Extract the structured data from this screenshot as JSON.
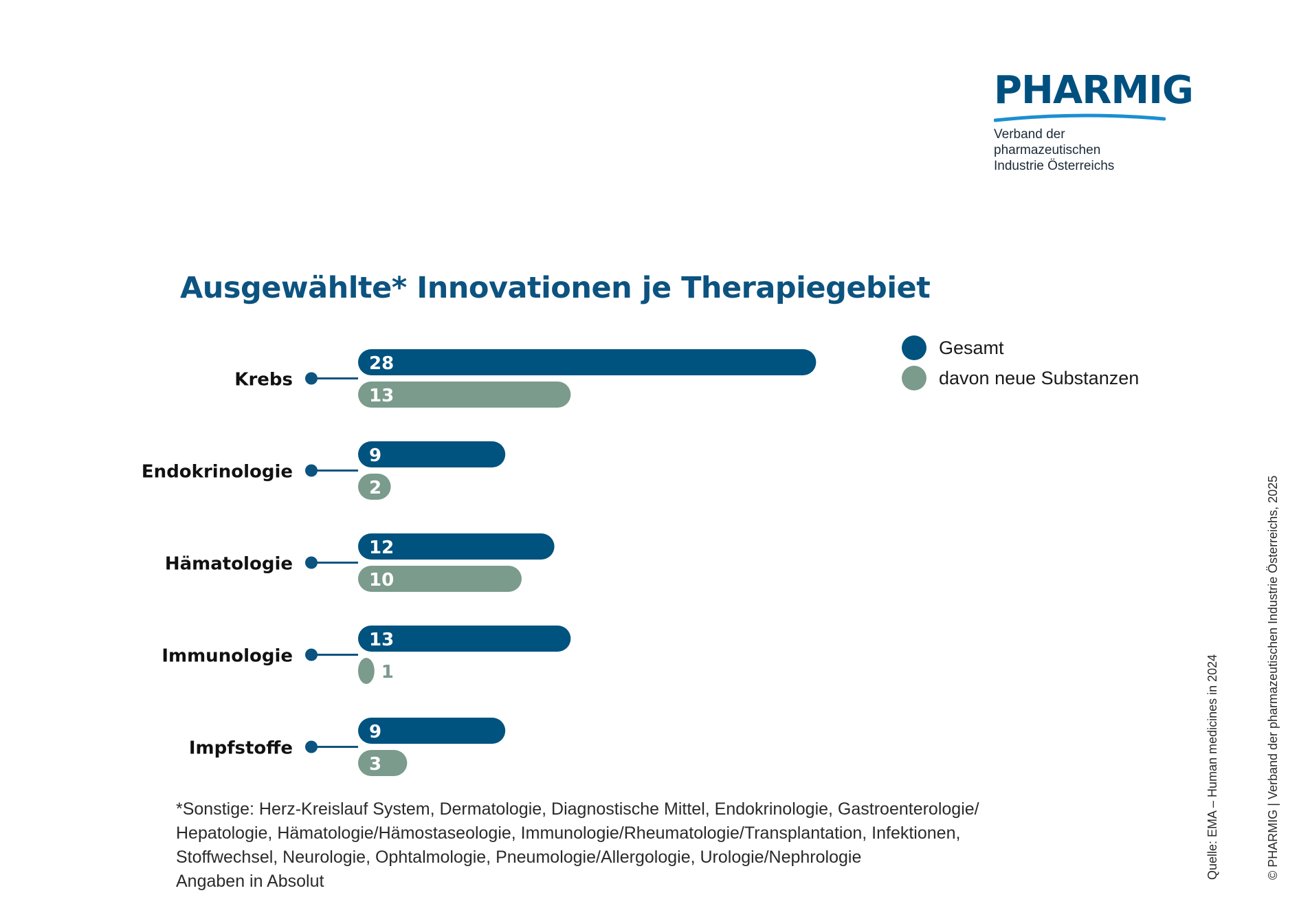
{
  "logo": {
    "wordmark": "PHARMIG",
    "subtitle_line1": "Verband der pharmazeutischen",
    "subtitle_line2": "Industrie Österreichs",
    "color": "#00507f",
    "swoosh_color": "#1a8fd1"
  },
  "chart_data": {
    "type": "bar",
    "orientation": "horizontal",
    "title": "Ausgewählte* Innovationen je Therapiegebiet",
    "categories": [
      "Krebs",
      "Endokrinologie",
      "Hämatologie",
      "Immunologie",
      "Impfstoffe"
    ],
    "series": [
      {
        "name": "Gesamt",
        "color": "#00527f",
        "values": [
          28,
          9,
          12,
          13,
          9
        ]
      },
      {
        "name": "davon neue Substanzen",
        "color": "#7b9b8c",
        "values": [
          13,
          2,
          10,
          1,
          3
        ]
      }
    ],
    "legend_position": "top-right",
    "grid": false
  },
  "colors": {
    "title": "#0c5380",
    "connector": "#0c5380"
  },
  "footnote": {
    "lines": [
      "*Sonstige: Herz-Kreislauf System, Dermatologie, Diagnostische Mittel, Endokrinologie, Gastroenterologie/",
      "Hepatologie, Hämatologie/Hämostaseologie, Immunologie/Rheumatologie/Transplantation, Infektionen,",
      "Stoffwechsel, Neurologie, Ophtalmologie, Pneumologie/Allergologie, Urologie/Nephrologie"
    ],
    "units_note": "Angaben in Absolut"
  },
  "source": "Quelle: EMA – Human medicines in 2024",
  "copyright": "© PHARMIG | Verband der pharmazeutischen Industrie Österreichs, 2025"
}
